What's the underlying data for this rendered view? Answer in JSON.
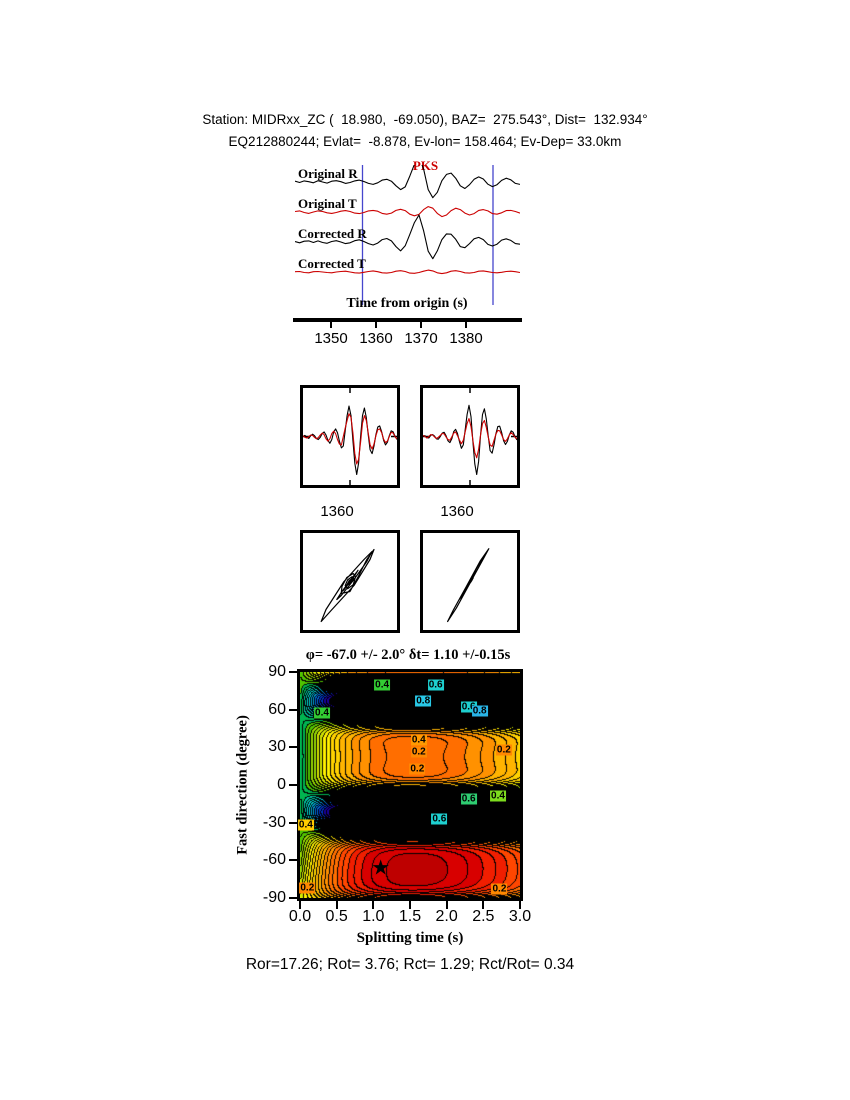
{
  "header": {
    "line1": "Station: MIDRxx_ZC (  18.980,  -69.050), BAZ=  275.543°, Dist=  132.934°",
    "line2": "EQ212880244; Evlat=  -8.878, Ev-lon= 158.464; Ev-Dep= 33.0km"
  },
  "footer": {
    "stats": "Ror=17.26; Rot= 3.76; Rct= 1.29; Rct/Rot= 0.34"
  },
  "chart_data": [
    {
      "id": "waveforms",
      "type": "line",
      "x_label": "Time from origin (s)",
      "x_range": [
        1342,
        1392
      ],
      "x_ticks": [
        1350,
        1360,
        1370,
        1380
      ],
      "window_markers": [
        1357,
        1386
      ],
      "phase_label": "PKS",
      "phase_time": 1371,
      "colors": {
        "marker": "#4646cd",
        "phase": "#cc0000"
      },
      "series": [
        {
          "name": "Original R",
          "color": "#000000",
          "values": [
            0.03,
            -0.02,
            0.04,
            0.01,
            -0.03,
            0.05,
            0.0,
            -0.04,
            0.03,
            0.05,
            0.01,
            -0.05,
            -0.02,
            0.04,
            0.07,
            0.02,
            -0.05,
            -0.09,
            -0.03,
            0.07,
            0.1,
            0.03,
            -0.14,
            -0.28,
            -0.18,
            0.22,
            0.65,
            0.92,
            0.48,
            -0.28,
            -0.58,
            -0.38,
            0.05,
            0.28,
            0.33,
            0.14,
            -0.14,
            -0.24,
            -0.1,
            0.1,
            0.19,
            0.11,
            -0.08,
            -0.17,
            -0.1,
            0.06,
            0.14,
            0.08,
            -0.05,
            -0.09
          ]
        },
        {
          "name": "Original T",
          "color": "#cc0000",
          "values": [
            0.02,
            0.04,
            -0.02,
            -0.05,
            0.0,
            0.04,
            0.02,
            -0.03,
            -0.05,
            -0.02,
            0.03,
            0.05,
            0.02,
            -0.04,
            -0.06,
            -0.02,
            0.04,
            0.06,
            0.03,
            -0.05,
            -0.08,
            -0.04,
            0.06,
            0.1,
            0.05,
            -0.08,
            -0.14,
            -0.09,
            0.09,
            0.2,
            0.14,
            -0.05,
            -0.17,
            -0.11,
            0.05,
            0.14,
            0.09,
            -0.04,
            -0.11,
            -0.06,
            0.06,
            0.09,
            0.04,
            -0.06,
            -0.08,
            -0.03,
            0.05,
            0.06,
            0.02,
            -0.04
          ]
        },
        {
          "name": "Corrected R",
          "color": "#000000",
          "values": [
            0.02,
            -0.03,
            0.03,
            0.04,
            -0.02,
            0.04,
            -0.02,
            -0.05,
            0.02,
            0.05,
            0.0,
            -0.06,
            -0.03,
            0.05,
            0.08,
            0.02,
            -0.06,
            -0.11,
            -0.04,
            0.09,
            0.13,
            0.04,
            -0.17,
            -0.33,
            -0.14,
            0.28,
            0.72,
            1.0,
            0.42,
            -0.34,
            -0.62,
            -0.33,
            0.09,
            0.3,
            0.29,
            0.1,
            -0.17,
            -0.21,
            -0.06,
            0.12,
            0.17,
            0.09,
            -0.09,
            -0.15,
            -0.08,
            0.07,
            0.12,
            0.06,
            -0.06,
            -0.08
          ]
        },
        {
          "name": "Corrected T",
          "color": "#cc0000",
          "values": [
            0.01,
            0.02,
            -0.02,
            -0.03,
            0.01,
            0.02,
            0.0,
            -0.02,
            -0.03,
            0.0,
            0.02,
            0.03,
            0.0,
            -0.03,
            -0.04,
            -0.01,
            0.02,
            0.04,
            0.01,
            -0.03,
            -0.04,
            -0.02,
            0.03,
            0.05,
            0.02,
            -0.04,
            -0.05,
            -0.02,
            0.03,
            0.07,
            0.04,
            -0.03,
            -0.06,
            -0.03,
            0.03,
            0.05,
            0.02,
            -0.03,
            -0.04,
            -0.02,
            0.03,
            0.04,
            0.01,
            -0.02,
            -0.03,
            -0.01,
            0.02,
            0.03,
            0.01,
            -0.02
          ]
        }
      ]
    },
    {
      "id": "window_seismograms",
      "type": "line",
      "tick_labels": [
        "1360",
        "1360"
      ],
      "colors": {
        "r": "#000000",
        "t": "#cc0000"
      },
      "panels": [
        {
          "r": [
            0.0,
            0.03,
            -0.02,
            -0.05,
            0.02,
            0.06,
            0.02,
            -0.05,
            -0.08,
            -0.02,
            0.08,
            0.12,
            0.04,
            -0.1,
            -0.18,
            -0.08,
            0.12,
            0.2,
            0.1,
            -0.12,
            -0.3,
            -0.25,
            0.15,
            0.55,
            0.8,
            0.55,
            -0.1,
            -0.7,
            -1.0,
            -0.7,
            0.0,
            0.55,
            0.75,
            0.5,
            0.05,
            -0.35,
            -0.45,
            -0.25,
            0.05,
            0.25,
            0.28,
            0.12,
            -0.1,
            -0.22,
            -0.15,
            0.02,
            0.15,
            0.12,
            0.0,
            -0.08
          ],
          "t": [
            0.02,
            -0.02,
            -0.04,
            0.0,
            0.04,
            0.03,
            -0.02,
            -0.06,
            -0.03,
            0.04,
            0.09,
            0.05,
            -0.06,
            -0.12,
            -0.06,
            0.08,
            0.14,
            0.08,
            -0.08,
            -0.2,
            -0.22,
            0.0,
            0.22,
            0.42,
            0.6,
            0.5,
            0.1,
            -0.45,
            -0.72,
            -0.6,
            -0.15,
            0.35,
            0.55,
            0.42,
            0.1,
            -0.22,
            -0.33,
            -0.2,
            0.02,
            0.18,
            0.2,
            0.1,
            -0.07,
            -0.16,
            -0.12,
            0.0,
            0.11,
            0.09,
            -0.01,
            -0.06
          ]
        },
        {
          "r": [
            0.01,
            0.02,
            -0.03,
            -0.04,
            0.03,
            0.05,
            0.01,
            -0.06,
            -0.07,
            0.0,
            0.09,
            0.11,
            0.02,
            -0.11,
            -0.16,
            -0.06,
            0.13,
            0.19,
            0.08,
            -0.13,
            -0.31,
            -0.22,
            0.18,
            0.58,
            0.82,
            0.52,
            -0.14,
            -0.72,
            -1.0,
            -0.66,
            0.05,
            0.58,
            0.73,
            0.46,
            0.02,
            -0.37,
            -0.44,
            -0.22,
            0.07,
            0.26,
            0.27,
            0.1,
            -0.11,
            -0.21,
            -0.13,
            0.04,
            0.15,
            0.11,
            -0.01,
            -0.09
          ],
          "t": [
            0.03,
            0.0,
            -0.04,
            0.0,
            0.05,
            0.04,
            -0.01,
            -0.05,
            -0.02,
            0.03,
            0.08,
            0.07,
            -0.01,
            -0.08,
            -0.1,
            -0.01,
            0.09,
            0.12,
            0.02,
            -0.09,
            -0.19,
            -0.1,
            0.12,
            0.34,
            0.47,
            0.26,
            -0.1,
            -0.42,
            -0.56,
            -0.34,
            0.05,
            0.34,
            0.42,
            0.24,
            -0.01,
            -0.22,
            -0.26,
            -0.1,
            0.06,
            0.16,
            0.15,
            0.04,
            -0.08,
            -0.13,
            -0.06,
            0.04,
            0.1,
            0.05,
            -0.02,
            -0.06
          ]
        }
      ]
    },
    {
      "id": "particle_motion",
      "type": "scatter",
      "derived_from": "window_seismograms"
    },
    {
      "id": "misfit_contour",
      "type": "heatmap",
      "title": "φ= -67.0 +/- 2.0° δt= 1.10 +/-0.15s",
      "x_label": "Splitting time (s)",
      "y_label": "Fast direction (degree)",
      "x_range": [
        0,
        3
      ],
      "y_range": [
        -90,
        90
      ],
      "x_ticks": [
        "0.0",
        "0.5",
        "1.0",
        "1.5",
        "2.0",
        "2.5",
        "3.0"
      ],
      "y_ticks": [
        90,
        60,
        30,
        0,
        -30,
        -60,
        -90
      ],
      "best_fit": {
        "phi": -67.0,
        "phi_err": 2.0,
        "dt": 1.1,
        "dt_err": 0.15
      },
      "star": {
        "x": 1.1,
        "y": -67,
        "glyph": "★"
      },
      "model": {
        "phi0": -67,
        "dt0": 1.1,
        "ramp_tau": 0.5,
        "base": 0.45,
        "base_tilt": 0.25,
        "gain": 1.15,
        "sharp": 3,
        "tilt": 0.05,
        "asym": 0.18
      },
      "colormap": [
        "#be0000",
        "#d80000",
        "#f01e00",
        "#ff4600",
        "#ff6e00",
        "#ff9100",
        "#ffb400",
        "#ffd200",
        "#fff000",
        "#d2e600",
        "#96d700",
        "#50c300",
        "#00b450",
        "#00c3a0",
        "#00d2d2",
        "#00a0d7",
        "#0069e1",
        "#0032c8",
        "#19009b",
        "#000000"
      ],
      "contour_labels": [
        {
          "x": 1.12,
          "y": 80,
          "text": "0.4",
          "bg": "#33cc33"
        },
        {
          "x": 1.85,
          "y": 80,
          "text": "0.6",
          "bg": "#1ecfcf"
        },
        {
          "x": 1.68,
          "y": 67,
          "text": "0.8",
          "bg": "#29c8e6"
        },
        {
          "x": 0.3,
          "y": 57,
          "text": "0.4",
          "bg": "#33cc33"
        },
        {
          "x": 2.3,
          "y": 62,
          "text": "0.6",
          "bg": "#1ecfcf"
        },
        {
          "x": 2.45,
          "y": 59,
          "text": "0.8",
          "bg": "#29b4e6"
        },
        {
          "x": 1.62,
          "y": 36,
          "text": "0.4",
          "bg": "#ff9900"
        },
        {
          "x": 1.62,
          "y": 26,
          "text": "0.2",
          "bg": "#ff8800"
        },
        {
          "x": 2.78,
          "y": 28,
          "text": "0.2",
          "bg": "#ff8800"
        },
        {
          "x": 1.6,
          "y": 13,
          "text": "0.2",
          "bg": "#ff8800"
        },
        {
          "x": 2.3,
          "y": -11,
          "text": "0.6",
          "bg": "#2ecc71"
        },
        {
          "x": 2.7,
          "y": -9,
          "text": "0.4",
          "bg": "#7ddc1e"
        },
        {
          "x": 1.9,
          "y": -27,
          "text": "0.6",
          "bg": "#1ecfcf"
        },
        {
          "x": 0.08,
          "y": -32,
          "text": "0.4",
          "bg": "#ffcc00"
        },
        {
          "x": 0.1,
          "y": -82,
          "text": "0.2",
          "bg": "#ff8800"
        },
        {
          "x": 2.72,
          "y": -83,
          "text": "0.2",
          "bg": "#ff8800"
        }
      ]
    }
  ]
}
